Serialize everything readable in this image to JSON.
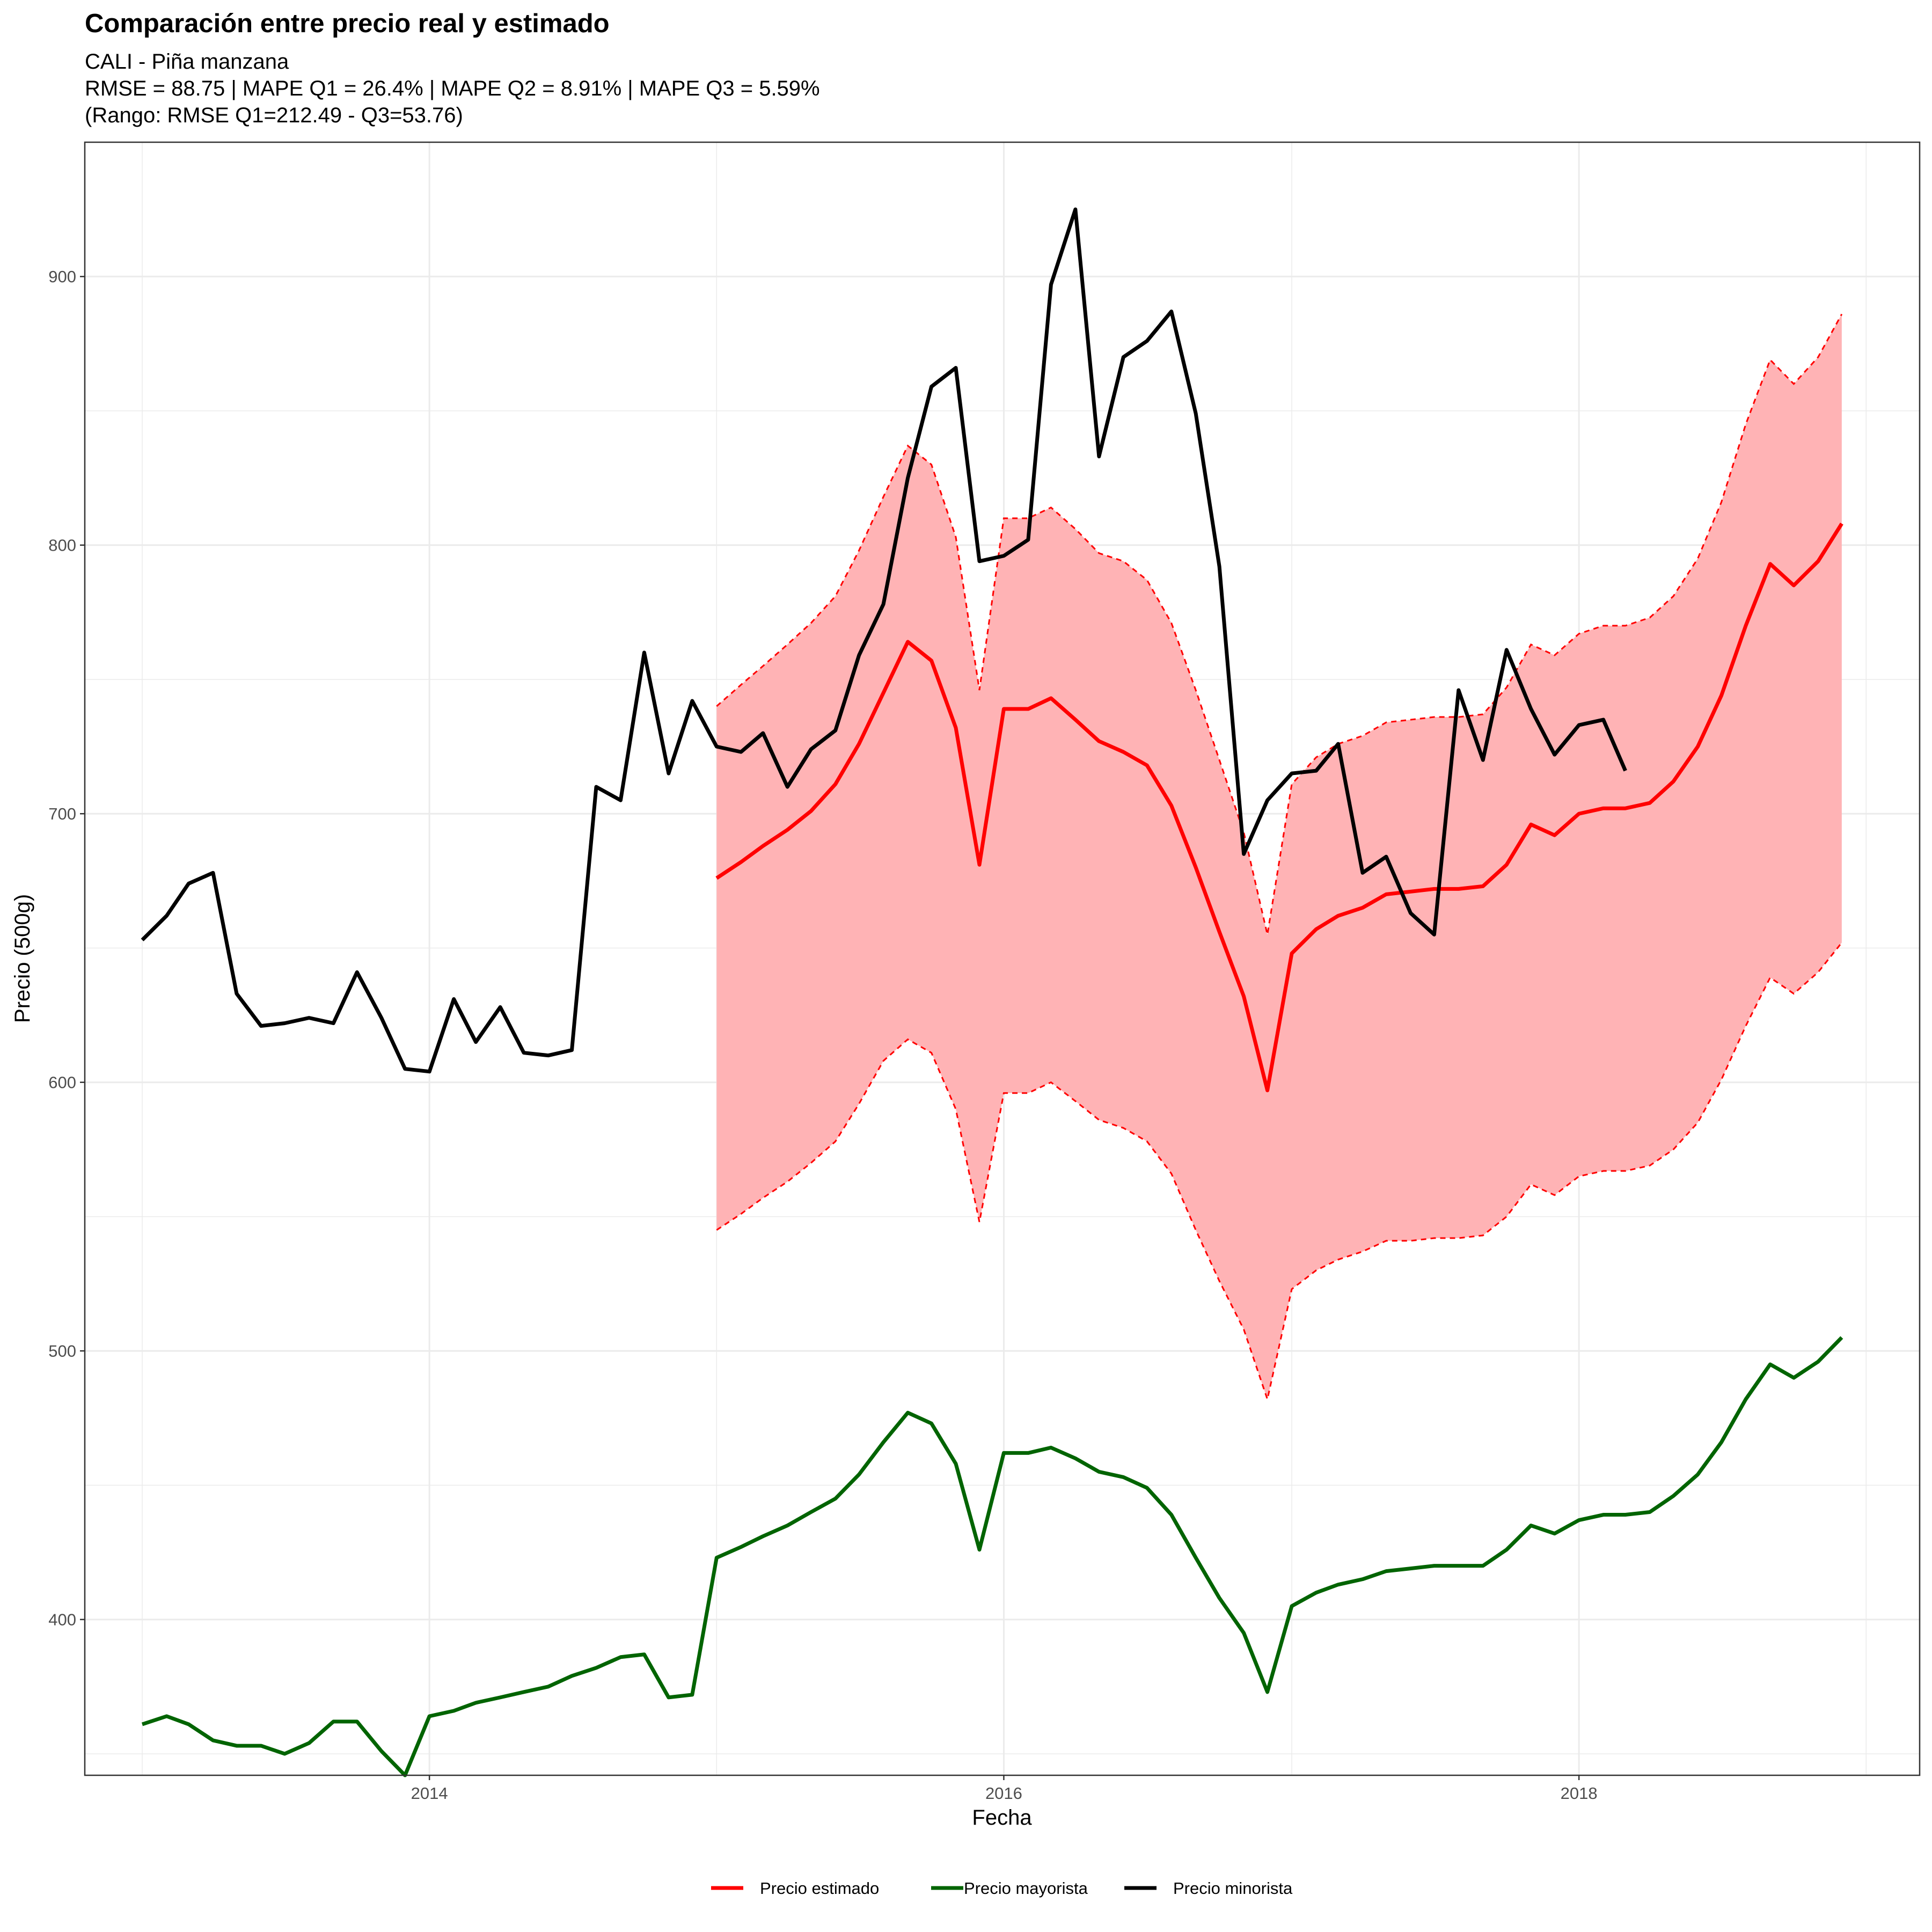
{
  "chart_data": {
    "type": "line",
    "title": "Comparación entre precio real y estimado",
    "subtitle_lines": [
      "CALI - Piña manzana",
      "RMSE = 88.75 | MAPE Q1 = 26.4% | MAPE Q2 = 8.91% | MAPE Q3 = 5.59%",
      "(Rango: RMSE Q1=212.49 - Q3=53.76)"
    ],
    "xlabel": "Fecha",
    "ylabel": "Precio (500g)",
    "x_ticks": [
      "2014",
      "2016",
      "2018"
    ],
    "y_ticks": [
      400,
      500,
      600,
      700,
      800,
      900
    ],
    "xlim": [
      "2012-10-20",
      "2019-03-10"
    ],
    "ylim": [
      342,
      950
    ],
    "grid": true,
    "legend_position": "bottom",
    "series": [
      {
        "name": "Precio minorista",
        "color": "#000000",
        "start": "2013-01",
        "values": [
          653,
          662,
          674,
          678,
          633,
          621,
          622,
          624,
          622,
          641,
          624,
          605,
          604,
          631,
          615,
          628,
          611,
          610,
          612,
          710,
          705,
          760,
          715,
          742,
          725,
          723,
          730,
          710,
          724,
          731,
          759,
          778,
          825,
          859,
          866,
          794,
          796,
          802,
          897,
          925,
          833,
          870,
          876,
          887,
          849,
          792,
          685,
          705,
          715,
          716,
          726,
          678,
          684,
          663,
          655,
          746,
          720,
          761,
          739,
          722,
          733,
          735,
          716
        ]
      },
      {
        "name": "Precio mayorista",
        "color": "#006400",
        "start": "2013-01",
        "values": [
          361,
          364,
          361,
          355,
          353,
          353,
          350,
          354,
          362,
          362,
          351,
          342,
          364,
          366,
          369,
          371,
          373,
          375,
          379,
          382,
          386,
          387,
          371,
          372,
          423,
          427,
          431,
          435,
          440,
          445,
          454,
          466,
          477,
          473,
          458,
          426,
          462,
          462,
          464,
          460,
          455,
          453,
          449,
          439,
          423,
          408,
          395,
          373,
          405,
          410,
          413,
          415,
          418,
          419,
          420,
          420,
          420,
          426,
          435,
          432,
          437,
          439,
          439,
          440,
          446,
          454,
          466,
          482,
          495,
          490,
          496,
          505
        ]
      },
      {
        "name": "Precio estimado",
        "color": "#ff0000",
        "start": "2015-01",
        "values": [
          676,
          682,
          688,
          694,
          701,
          711,
          726,
          745,
          764,
          757,
          732,
          681,
          739,
          739,
          743,
          735,
          727,
          723,
          718,
          703,
          680,
          656,
          632,
          597,
          648,
          657,
          662,
          665,
          670,
          671,
          672,
          672,
          673,
          681,
          696,
          692,
          700,
          702,
          702,
          704,
          712,
          725,
          744,
          770,
          793,
          785,
          794,
          808
        ],
        "lower": [
          545,
          551,
          557,
          563,
          570,
          578,
          592,
          608,
          616,
          611,
          590,
          548,
          596,
          596,
          600,
          593,
          586,
          583,
          578,
          566,
          545,
          526,
          508,
          482,
          523,
          530,
          534,
          537,
          541,
          541,
          542,
          542,
          543,
          550,
          562,
          558,
          565,
          567,
          567,
          569,
          575,
          585,
          601,
          621,
          639,
          633,
          641,
          652
        ],
        "upper": [
          740,
          748,
          755,
          763,
          771,
          781,
          798,
          818,
          837,
          830,
          803,
          746,
          810,
          810,
          814,
          806,
          797,
          794,
          787,
          771,
          746,
          720,
          693,
          655,
          711,
          721,
          726,
          729,
          734,
          735,
          736,
          736,
          737,
          747,
          763,
          759,
          767,
          770,
          770,
          773,
          781,
          795,
          816,
          845,
          869,
          860,
          870,
          886
        ]
      }
    ],
    "legend": [
      "Precio estimado",
      "Precio mayorista",
      "Precio minorista"
    ],
    "band_fill_color": "#ffb3b5"
  }
}
